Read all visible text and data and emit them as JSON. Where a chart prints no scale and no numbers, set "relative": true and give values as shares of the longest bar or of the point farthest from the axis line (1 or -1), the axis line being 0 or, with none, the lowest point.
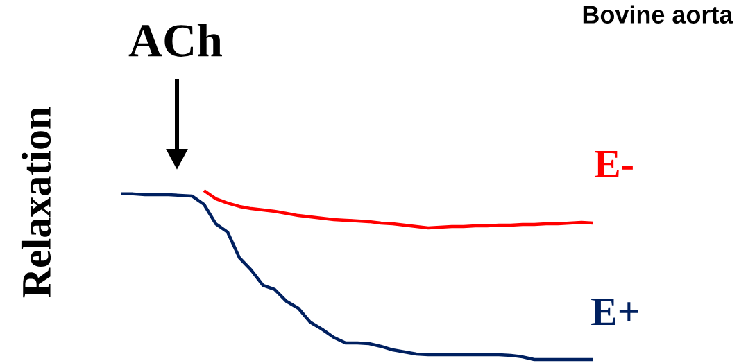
{
  "chart_data": {
    "type": "line",
    "title": "Bovine aorta",
    "ylabel": "Relaxation",
    "relative": true,
    "annotations": [
      "ACh"
    ],
    "categories": [
      null,
      null,
      null,
      null,
      null,
      null,
      null,
      null,
      null,
      null,
      null,
      null,
      null,
      null,
      null,
      null,
      null,
      null,
      null,
      null,
      null,
      null,
      null,
      null,
      null,
      null,
      null,
      null,
      null,
      null,
      null,
      null,
      null,
      null,
      null,
      null,
      null,
      null,
      null,
      null,
      null
    ],
    "series": [
      {
        "name": "E-",
        "color": "#ff0000",
        "values": [
          null,
          null,
          null,
          null,
          null,
          null,
          null,
          1,
          0.951,
          0.926,
          0.906,
          0.893,
          0.885,
          0.877,
          0.865,
          0.852,
          0.844,
          0.836,
          0.828,
          0.824,
          0.82,
          0.816,
          0.807,
          0.803,
          0.795,
          0.787,
          0.779,
          0.783,
          0.787,
          0.787,
          0.791,
          0.791,
          0.795,
          0.795,
          0.799,
          0.799,
          0.803,
          0.803,
          0.807,
          0.811,
          0.807
        ]
      },
      {
        "name": "E+",
        "color": "#002060",
        "values": [
          0.98,
          0.98,
          0.975,
          0.975,
          0.975,
          0.971,
          0.967,
          0.918,
          0.803,
          0.754,
          0.602,
          0.529,
          0.439,
          0.414,
          0.344,
          0.303,
          0.221,
          0.18,
          0.131,
          0.098,
          0.098,
          0.094,
          0.078,
          0.057,
          0.045,
          0.033,
          0.029,
          0.029,
          0.029,
          0.029,
          0.029,
          0.029,
          0.029,
          0.025,
          0.016,
          0,
          0,
          0,
          0,
          0,
          0
        ]
      }
    ]
  }
}
